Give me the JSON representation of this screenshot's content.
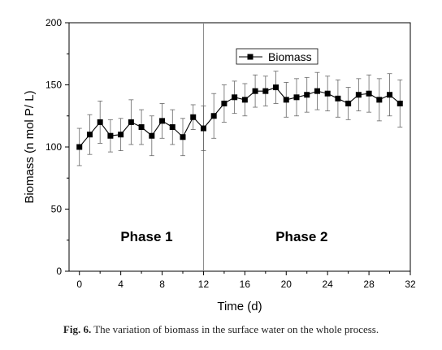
{
  "chart_data": {
    "type": "line",
    "xlabel": "Time (d)",
    "ylabel": "Biomass (n mol P/ L)",
    "xlim": [
      -1,
      32
    ],
    "ylim": [
      0,
      200
    ],
    "x_ticks": [
      0,
      4,
      8,
      12,
      16,
      20,
      24,
      28,
      32
    ],
    "y_ticks": [
      0,
      50,
      100,
      150,
      200
    ],
    "grid": false,
    "legend_position": "top-right",
    "divider_x": 12,
    "phase_labels": [
      {
        "text": "Phase 1",
        "x": 6.5,
        "y": 28
      },
      {
        "text": "Phase 2",
        "x": 21.5,
        "y": 28
      }
    ],
    "series": [
      {
        "name": "Biomass",
        "marker": "square",
        "color": "#000000",
        "x": [
          0,
          1,
          2,
          3,
          4,
          5,
          6,
          7,
          8,
          9,
          10,
          11,
          12,
          13,
          14,
          15,
          16,
          17,
          18,
          19,
          20,
          21,
          22,
          23,
          24,
          25,
          26,
          27,
          28,
          29,
          30,
          31
        ],
        "y": [
          100,
          110,
          120,
          109,
          110,
          120,
          116,
          109,
          121,
          116,
          108,
          124,
          115,
          125,
          135,
          140,
          138,
          145,
          145,
          148,
          138,
          140,
          142,
          145,
          143,
          139,
          135,
          142,
          143,
          138,
          142,
          135
        ],
        "error": [
          15,
          16,
          17,
          13,
          13,
          18,
          14,
          16,
          14,
          14,
          15,
          10,
          18,
          18,
          15,
          13,
          13,
          13,
          12,
          13,
          14,
          15,
          14,
          15,
          14,
          15,
          13,
          13,
          15,
          17,
          17,
          19
        ]
      }
    ]
  },
  "caption": {
    "label": "Fig. 6.",
    "text": "The variation of biomass in the surface water on the whole process."
  }
}
